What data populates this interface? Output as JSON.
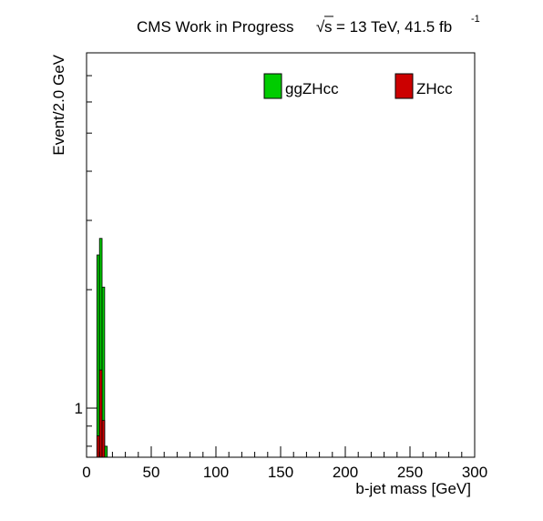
{
  "chart_data": {
    "type": "bar",
    "title_left": "CMS Work in Progress",
    "title_sqrt": "s",
    "title_right": "= 13 TeV, 41.5 fb",
    "title_sup": "-1",
    "xlabel": "b-jet mass [GeV]",
    "ylabel": "Event/2.0 GeV",
    "xlim": [
      0,
      300
    ],
    "ylim": [
      0.75,
      8.0
    ],
    "yscale": "log",
    "bin_width": 2.0,
    "xticks": [
      0,
      50,
      100,
      150,
      200,
      250,
      300
    ],
    "yticks": [
      1
    ],
    "stacked": true,
    "legend_position": "top",
    "series": [
      {
        "name": "ZHcc",
        "color": "#cc0000",
        "bins": [
          {
            "x0": 8,
            "x1": 10,
            "y": 0.85
          },
          {
            "x0": 10,
            "x1": 12,
            "y": 1.25
          },
          {
            "x0": 12,
            "x1": 14,
            "y": 0.93
          }
        ]
      },
      {
        "name": "ggZHcc",
        "color": "#00cc00",
        "bins": [
          {
            "x0": 8,
            "x1": 10,
            "y": 1.6
          },
          {
            "x0": 10,
            "x1": 12,
            "y": 1.45
          },
          {
            "x0": 12,
            "x1": 14,
            "y": 1.1
          },
          {
            "x0": 14,
            "x1": 16,
            "y": 0.8
          }
        ]
      }
    ]
  }
}
